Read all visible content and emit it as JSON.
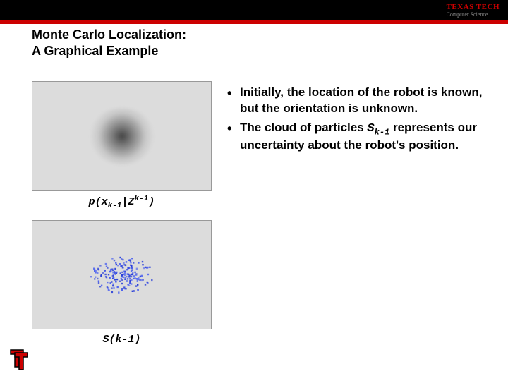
{
  "header": {
    "university": "TEXAS TECH",
    "department": "Computer Science",
    "stripe_color": "#cc0000",
    "bar_color": "#000000"
  },
  "title": {
    "line1": "Monte Carlo Localization:",
    "line2": "A Graphical Example"
  },
  "figures": {
    "top": {
      "caption_prefix": "p(x",
      "caption_sub1": "k-1",
      "caption_mid": "|Z",
      "caption_sup": "k-1",
      "caption_suffix": ")",
      "cloud_color": "#3a3a3a",
      "bg_color": "#dcdcdc"
    },
    "bottom": {
      "caption": "S(k-1)",
      "particle_color": "#2a3fd8",
      "particle_color_alt": "#4a5ff0",
      "bg_color": "#dcdcdc",
      "particle_count": 180
    }
  },
  "bullets": {
    "items": [
      {
        "text_a": "Initially, the location of the robot is known, but the orientation is unknown."
      },
      {
        "text_a": "The cloud of particles ",
        "formula_main": "S",
        "formula_sub": "k-1",
        "text_b": " represents our uncertainty about the robot's position."
      }
    ]
  },
  "corner_logo": {
    "fill": "#cc0000",
    "stroke": "#000000"
  }
}
